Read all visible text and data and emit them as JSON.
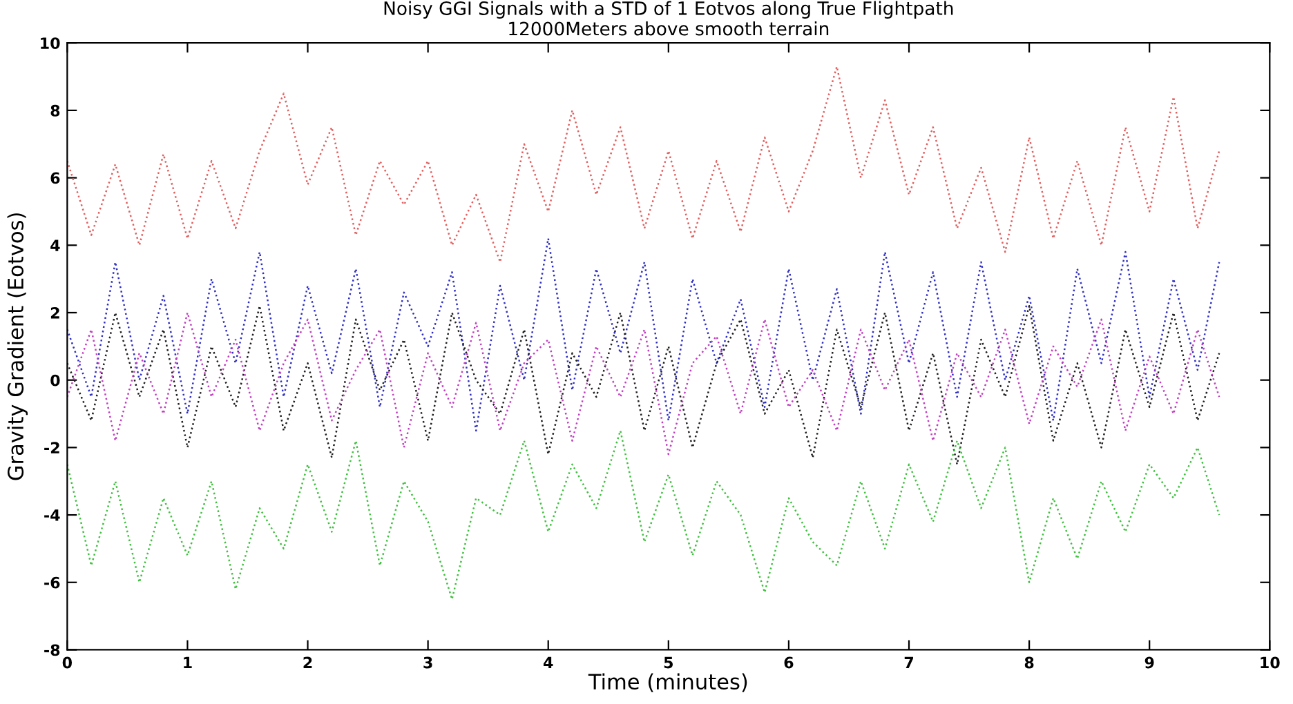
{
  "chart_data": {
    "type": "line",
    "title": "Noisy GGI Signals with a STD of 1 Eotvos along True Flightpath",
    "subtitle": "12000Meters above smooth terrain",
    "xlabel": "Time (minutes)",
    "ylabel": "Gravity Gradient (Eotvos)",
    "x": [
      0,
      0.2,
      0.4,
      0.6,
      0.8,
      1.0,
      1.2,
      1.4,
      1.6,
      1.8,
      2.0,
      2.2,
      2.4,
      2.6,
      2.8,
      3.0,
      3.2,
      3.4,
      3.6,
      3.8,
      4.0,
      4.2,
      4.4,
      4.6,
      4.8,
      5.0,
      5.2,
      5.4,
      5.6,
      5.8,
      6.0,
      6.2,
      6.4,
      6.6,
      6.8,
      7.0,
      7.2,
      7.4,
      7.6,
      7.8,
      8.0,
      8.2,
      8.4,
      8.6,
      8.8,
      9.0,
      9.2,
      9.4,
      9.58
    ],
    "series": [
      {
        "color": "#e06060",
        "values": [
          6.5,
          4.3,
          6.4,
          4.0,
          6.7,
          4.2,
          6.5,
          4.5,
          6.8,
          8.5,
          5.8,
          7.5,
          4.3,
          6.5,
          5.2,
          6.5,
          4.0,
          5.5,
          3.5,
          7.0,
          5.0,
          8.0,
          5.5,
          7.5,
          4.5,
          6.8,
          4.2,
          6.5,
          4.4,
          7.2,
          5.0,
          6.8,
          9.3,
          6.0,
          8.3,
          5.5,
          7.5,
          4.5,
          6.3,
          3.8,
          7.2,
          4.2,
          6.5,
          4.0,
          7.5,
          5.0,
          8.4,
          4.5,
          6.8
        ]
      },
      {
        "color": "#3030c0",
        "values": [
          1.5,
          -0.5,
          3.5,
          0.0,
          2.5,
          -1.0,
          3.0,
          0.5,
          3.8,
          -0.5,
          2.8,
          0.2,
          3.3,
          -0.8,
          2.6,
          1.0,
          3.2,
          -1.5,
          2.8,
          0.0,
          4.2,
          -0.3,
          3.3,
          0.8,
          3.5,
          -1.2,
          3.0,
          0.5,
          2.4,
          -0.8,
          3.3,
          0.0,
          2.7,
          -1.0,
          3.8,
          0.5,
          3.2,
          -0.5,
          3.5,
          0.0,
          2.5,
          -1.2,
          3.3,
          0.5,
          3.8,
          -0.5,
          3.0,
          0.3,
          3.5
        ]
      },
      {
        "color": "#202020",
        "values": [
          0.5,
          -1.2,
          2.0,
          -0.5,
          1.5,
          -2.0,
          1.0,
          -0.8,
          2.2,
          -1.5,
          0.5,
          -2.3,
          1.8,
          -0.3,
          1.2,
          -1.8,
          2.0,
          0.0,
          -1.0,
          1.5,
          -2.2,
          0.8,
          -0.5,
          2.0,
          -1.5,
          1.0,
          -2.0,
          0.5,
          1.8,
          -1.0,
          0.3,
          -2.3,
          1.5,
          -0.8,
          2.0,
          -1.5,
          0.8,
          -2.5,
          1.2,
          -0.5,
          2.2,
          -1.8,
          0.5,
          -2.0,
          1.5,
          -0.8,
          2.0,
          -1.2,
          0.8
        ]
      },
      {
        "color": "#c040c0",
        "values": [
          -0.5,
          1.5,
          -1.8,
          0.8,
          -1.0,
          2.0,
          -0.5,
          1.2,
          -1.5,
          0.5,
          1.8,
          -1.2,
          0.3,
          1.5,
          -2.0,
          0.8,
          -0.8,
          1.7,
          -1.5,
          0.5,
          1.2,
          -1.8,
          1.0,
          -0.5,
          1.5,
          -2.2,
          0.5,
          1.3,
          -1.0,
          1.8,
          -0.8,
          0.3,
          -1.5,
          1.5,
          -0.3,
          1.2,
          -1.8,
          0.8,
          -0.5,
          1.5,
          -1.3,
          1.0,
          -0.2,
          1.8,
          -1.5,
          0.7,
          -1.0,
          1.5,
          -0.5
        ]
      },
      {
        "color": "#40c040",
        "values": [
          -2.5,
          -5.5,
          -3.0,
          -6.0,
          -3.5,
          -5.2,
          -3.0,
          -6.2,
          -3.8,
          -5.0,
          -2.5,
          -4.5,
          -1.8,
          -5.5,
          -3.0,
          -4.2,
          -6.5,
          -3.5,
          -4.0,
          -1.8,
          -4.5,
          -2.5,
          -3.8,
          -1.5,
          -4.8,
          -2.8,
          -5.2,
          -3.0,
          -4.0,
          -6.3,
          -3.5,
          -4.8,
          -5.5,
          -3.0,
          -5.0,
          -2.5,
          -4.2,
          -1.8,
          -3.8,
          -2.0,
          -6.0,
          -3.5,
          -5.3,
          -3.0,
          -4.5,
          -2.5,
          -3.5,
          -2.0,
          -4.0
        ]
      }
    ],
    "xlim": [
      0,
      10
    ],
    "xticks": [
      0,
      1,
      2,
      3,
      4,
      5,
      6,
      7,
      8,
      9,
      10
    ],
    "ylim": [
      -8,
      10
    ],
    "yticks": [
      -8,
      -6,
      -4,
      -2,
      0,
      2,
      4,
      6,
      8,
      10
    ],
    "line_style": "dotted",
    "marker": "none",
    "grid": false,
    "legend": false
  }
}
